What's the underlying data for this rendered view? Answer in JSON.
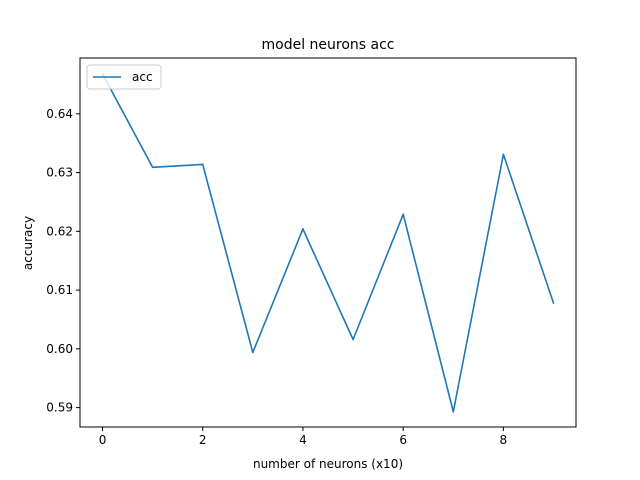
{
  "chart_data": {
    "type": "line",
    "title": "model neurons acc",
    "xlabel": "number of neurons (x10)",
    "ylabel": "accuracy",
    "xlim": [
      -0.45,
      9.45
    ],
    "ylim": [
      0.5867,
      0.6495
    ],
    "x_ticks": [
      0,
      2,
      4,
      6,
      8
    ],
    "x_tick_labels": [
      "0",
      "2",
      "4",
      "6",
      "8"
    ],
    "y_ticks": [
      0.59,
      0.6,
      0.61,
      0.62,
      0.63,
      0.64
    ],
    "y_tick_labels": [
      "0.59",
      "0.60",
      "0.61",
      "0.62",
      "0.63",
      "0.64"
    ],
    "grid": false,
    "legend_position": "upper-left",
    "series": [
      {
        "name": "acc",
        "color": "#1f77b4",
        "x": [
          0,
          1,
          2,
          3,
          4,
          5,
          6,
          7,
          8,
          9
        ],
        "values": [
          0.6468,
          0.6309,
          0.6314,
          0.5994,
          0.6204,
          0.6016,
          0.6229,
          0.5893,
          0.6331,
          0.6078
        ]
      }
    ]
  }
}
